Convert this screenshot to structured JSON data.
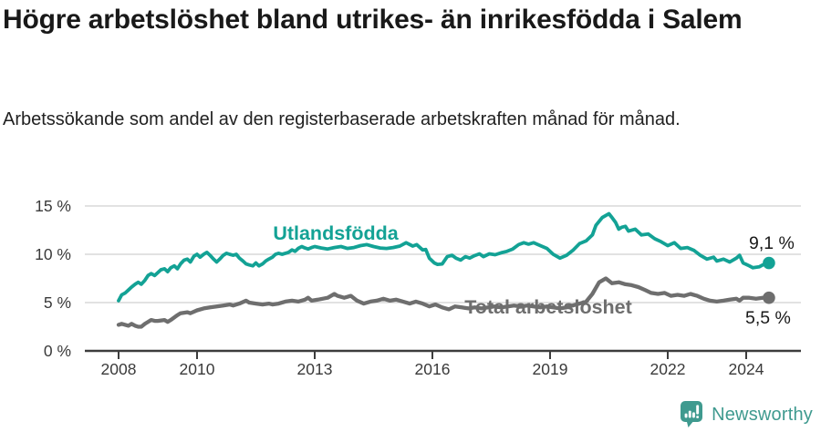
{
  "header": {
    "title": "Högre arbetslöshet bland utrikes- än inrikesfödda i Salem",
    "subtitle": "Arbetssökande som andel av den registerbaserade arbetskraften månad för månad."
  },
  "chart_data": {
    "type": "line",
    "title": "Högre arbetslöshet bland utrikes- än inrikesfödda i Salem",
    "subtitle": "Arbetssökande som andel av den registerbaserade arbetskraften månad för månad.",
    "unit": "%",
    "grid": true,
    "legend_position": "inline-labels-on-chart",
    "x_axis": {
      "range": [
        2008,
        2024.58
      ],
      "ticks": [
        {
          "value": 2008,
          "label": "2008"
        },
        {
          "value": 2010,
          "label": "2010"
        },
        {
          "value": 2013,
          "label": "2013"
        },
        {
          "value": 2016,
          "label": "2016"
        },
        {
          "value": 2019,
          "label": "2019"
        },
        {
          "value": 2022,
          "label": "2022"
        },
        {
          "value": 2024,
          "label": "2024"
        }
      ]
    },
    "y_axis": {
      "range": [
        0,
        15
      ],
      "ticks": [
        {
          "value": 0,
          "label": "0 %"
        },
        {
          "value": 5,
          "label": "5 %"
        },
        {
          "value": 10,
          "label": "10 %"
        },
        {
          "value": 15,
          "label": "15 %"
        }
      ]
    },
    "series": [
      {
        "name": "Utlandsfödda",
        "color": "#13a295",
        "end_value": 9.1,
        "end_label": "9,1 %",
        "points": [
          [
            2008.0,
            5.2
          ],
          [
            2008.08,
            5.8
          ],
          [
            2008.17,
            6.0
          ],
          [
            2008.25,
            6.3
          ],
          [
            2008.33,
            6.6
          ],
          [
            2008.42,
            6.9
          ],
          [
            2008.5,
            7.1
          ],
          [
            2008.58,
            6.9
          ],
          [
            2008.67,
            7.3
          ],
          [
            2008.75,
            7.8
          ],
          [
            2008.83,
            8.0
          ],
          [
            2008.92,
            7.8
          ],
          [
            2009.0,
            8.1
          ],
          [
            2009.08,
            8.4
          ],
          [
            2009.17,
            8.5
          ],
          [
            2009.25,
            8.2
          ],
          [
            2009.33,
            8.6
          ],
          [
            2009.42,
            8.8
          ],
          [
            2009.5,
            8.5
          ],
          [
            2009.58,
            9.0
          ],
          [
            2009.67,
            9.4
          ],
          [
            2009.75,
            9.5
          ],
          [
            2009.83,
            9.2
          ],
          [
            2009.92,
            9.8
          ],
          [
            2010.0,
            10.0
          ],
          [
            2010.08,
            9.7
          ],
          [
            2010.17,
            10.0
          ],
          [
            2010.25,
            10.2
          ],
          [
            2010.33,
            9.9
          ],
          [
            2010.42,
            9.5
          ],
          [
            2010.5,
            9.2
          ],
          [
            2010.58,
            9.5
          ],
          [
            2010.67,
            9.9
          ],
          [
            2010.75,
            10.1
          ],
          [
            2010.83,
            10.0
          ],
          [
            2010.92,
            9.9
          ],
          [
            2011.0,
            10.0
          ],
          [
            2011.08,
            9.6
          ],
          [
            2011.17,
            9.3
          ],
          [
            2011.25,
            9.0
          ],
          [
            2011.33,
            8.9
          ],
          [
            2011.42,
            8.8
          ],
          [
            2011.5,
            9.1
          ],
          [
            2011.58,
            8.8
          ],
          [
            2011.67,
            9.0
          ],
          [
            2011.75,
            9.3
          ],
          [
            2011.83,
            9.5
          ],
          [
            2011.92,
            9.7
          ],
          [
            2012.0,
            10.0
          ],
          [
            2012.08,
            10.1
          ],
          [
            2012.17,
            10.0
          ],
          [
            2012.25,
            10.1
          ],
          [
            2012.33,
            10.2
          ],
          [
            2012.42,
            10.45
          ],
          [
            2012.5,
            10.3
          ],
          [
            2012.58,
            10.6
          ],
          [
            2012.67,
            10.8
          ],
          [
            2012.75,
            10.65
          ],
          [
            2012.83,
            10.55
          ],
          [
            2012.92,
            10.7
          ],
          [
            2013.0,
            10.8
          ],
          [
            2013.17,
            10.65
          ],
          [
            2013.33,
            10.55
          ],
          [
            2013.5,
            10.7
          ],
          [
            2013.67,
            10.8
          ],
          [
            2013.83,
            10.6
          ],
          [
            2014.0,
            10.7
          ],
          [
            2014.17,
            10.9
          ],
          [
            2014.33,
            11.0
          ],
          [
            2014.5,
            10.8
          ],
          [
            2014.67,
            10.65
          ],
          [
            2014.83,
            10.6
          ],
          [
            2015.0,
            10.7
          ],
          [
            2015.17,
            10.85
          ],
          [
            2015.33,
            11.2
          ],
          [
            2015.5,
            10.85
          ],
          [
            2015.6,
            11.0
          ],
          [
            2015.75,
            10.45
          ],
          [
            2015.83,
            10.5
          ],
          [
            2015.92,
            9.6
          ],
          [
            2016.05,
            9.1
          ],
          [
            2016.13,
            8.95
          ],
          [
            2016.25,
            9.0
          ],
          [
            2016.38,
            9.75
          ],
          [
            2016.5,
            9.9
          ],
          [
            2016.6,
            9.6
          ],
          [
            2016.72,
            9.4
          ],
          [
            2016.84,
            9.75
          ],
          [
            2016.95,
            9.6
          ],
          [
            2017.07,
            9.85
          ],
          [
            2017.2,
            10.05
          ],
          [
            2017.3,
            9.75
          ],
          [
            2017.45,
            10.05
          ],
          [
            2017.6,
            9.95
          ],
          [
            2017.75,
            10.15
          ],
          [
            2017.9,
            10.3
          ],
          [
            2018.05,
            10.55
          ],
          [
            2018.2,
            11.0
          ],
          [
            2018.33,
            11.2
          ],
          [
            2018.45,
            11.05
          ],
          [
            2018.58,
            11.2
          ],
          [
            2018.75,
            10.9
          ],
          [
            2018.92,
            10.6
          ],
          [
            2019.08,
            10.0
          ],
          [
            2019.25,
            9.6
          ],
          [
            2019.42,
            9.9
          ],
          [
            2019.58,
            10.4
          ],
          [
            2019.75,
            11.1
          ],
          [
            2019.92,
            11.4
          ],
          [
            2020.08,
            12.0
          ],
          [
            2020.17,
            13.0
          ],
          [
            2020.33,
            13.8
          ],
          [
            2020.5,
            14.2
          ],
          [
            2020.58,
            13.8
          ],
          [
            2020.67,
            13.3
          ],
          [
            2020.75,
            12.6
          ],
          [
            2020.83,
            12.8
          ],
          [
            2020.92,
            12.9
          ],
          [
            2021.0,
            12.4
          ],
          [
            2021.17,
            12.6
          ],
          [
            2021.33,
            12.0
          ],
          [
            2021.5,
            12.1
          ],
          [
            2021.67,
            11.6
          ],
          [
            2021.83,
            11.3
          ],
          [
            2022.0,
            10.9
          ],
          [
            2022.17,
            11.2
          ],
          [
            2022.33,
            10.6
          ],
          [
            2022.5,
            10.7
          ],
          [
            2022.67,
            10.4
          ],
          [
            2022.83,
            9.9
          ],
          [
            2023.0,
            9.5
          ],
          [
            2023.17,
            9.7
          ],
          [
            2023.25,
            9.3
          ],
          [
            2023.42,
            9.5
          ],
          [
            2023.58,
            9.2
          ],
          [
            2023.75,
            9.6
          ],
          [
            2023.83,
            9.9
          ],
          [
            2023.92,
            9.1
          ],
          [
            2024.08,
            8.8
          ],
          [
            2024.17,
            8.6
          ],
          [
            2024.33,
            8.7
          ],
          [
            2024.42,
            8.9
          ],
          [
            2024.58,
            9.1
          ]
        ]
      },
      {
        "name": "Total arbetslöshet",
        "color": "#6e6e6e",
        "end_value": 5.5,
        "end_label": "5,5 %",
        "points": [
          [
            2008.0,
            2.7
          ],
          [
            2008.08,
            2.8
          ],
          [
            2008.17,
            2.7
          ],
          [
            2008.25,
            2.6
          ],
          [
            2008.33,
            2.8
          ],
          [
            2008.42,
            2.6
          ],
          [
            2008.5,
            2.5
          ],
          [
            2008.58,
            2.5
          ],
          [
            2008.67,
            2.8
          ],
          [
            2008.75,
            3.0
          ],
          [
            2008.83,
            3.2
          ],
          [
            2008.92,
            3.1
          ],
          [
            2009.0,
            3.1
          ],
          [
            2009.17,
            3.2
          ],
          [
            2009.25,
            3.0
          ],
          [
            2009.33,
            3.2
          ],
          [
            2009.5,
            3.7
          ],
          [
            2009.58,
            3.9
          ],
          [
            2009.75,
            4.0
          ],
          [
            2009.83,
            3.9
          ],
          [
            2010.0,
            4.2
          ],
          [
            2010.17,
            4.4
          ],
          [
            2010.33,
            4.5
          ],
          [
            2010.5,
            4.6
          ],
          [
            2010.67,
            4.7
          ],
          [
            2010.83,
            4.8
          ],
          [
            2010.92,
            4.7
          ],
          [
            2011.08,
            4.9
          ],
          [
            2011.25,
            5.2
          ],
          [
            2011.33,
            5.0
          ],
          [
            2011.5,
            4.9
          ],
          [
            2011.67,
            4.8
          ],
          [
            2011.83,
            4.9
          ],
          [
            2011.92,
            4.8
          ],
          [
            2012.08,
            4.9
          ],
          [
            2012.25,
            5.1
          ],
          [
            2012.42,
            5.2
          ],
          [
            2012.58,
            5.1
          ],
          [
            2012.75,
            5.3
          ],
          [
            2012.83,
            5.5
          ],
          [
            2012.92,
            5.2
          ],
          [
            2013.08,
            5.3
          ],
          [
            2013.33,
            5.5
          ],
          [
            2013.5,
            5.9
          ],
          [
            2013.58,
            5.7
          ],
          [
            2013.75,
            5.5
          ],
          [
            2013.92,
            5.7
          ],
          [
            2014.08,
            5.2
          ],
          [
            2014.25,
            4.9
          ],
          [
            2014.42,
            5.1
          ],
          [
            2014.58,
            5.2
          ],
          [
            2014.75,
            5.4
          ],
          [
            2014.92,
            5.2
          ],
          [
            2015.08,
            5.3
          ],
          [
            2015.25,
            5.1
          ],
          [
            2015.42,
            4.9
          ],
          [
            2015.58,
            5.1
          ],
          [
            2015.75,
            4.9
          ],
          [
            2015.92,
            4.6
          ],
          [
            2016.08,
            4.8
          ],
          [
            2016.25,
            4.5
          ],
          [
            2016.42,
            4.3
          ],
          [
            2016.58,
            4.6
          ],
          [
            2016.75,
            4.5
          ],
          [
            2016.92,
            4.4
          ],
          [
            2017.08,
            4.5
          ],
          [
            2017.25,
            4.4
          ],
          [
            2017.42,
            4.5
          ],
          [
            2017.58,
            4.6
          ],
          [
            2017.75,
            4.5
          ],
          [
            2017.92,
            4.6
          ],
          [
            2018.08,
            4.7
          ],
          [
            2018.25,
            4.6
          ],
          [
            2018.42,
            4.7
          ],
          [
            2018.58,
            4.6
          ],
          [
            2018.75,
            4.5
          ],
          [
            2018.92,
            4.6
          ],
          [
            2019.08,
            4.5
          ],
          [
            2019.25,
            4.4
          ],
          [
            2019.42,
            4.5
          ],
          [
            2019.58,
            4.7
          ],
          [
            2019.75,
            4.9
          ],
          [
            2019.92,
            5.1
          ],
          [
            2020.08,
            5.9
          ],
          [
            2020.25,
            7.1
          ],
          [
            2020.42,
            7.5
          ],
          [
            2020.58,
            7.0
          ],
          [
            2020.75,
            7.1
          ],
          [
            2020.92,
            6.9
          ],
          [
            2021.08,
            6.8
          ],
          [
            2021.25,
            6.6
          ],
          [
            2021.42,
            6.3
          ],
          [
            2021.58,
            6.0
          ],
          [
            2021.75,
            5.9
          ],
          [
            2021.92,
            6.0
          ],
          [
            2022.08,
            5.7
          ],
          [
            2022.25,
            5.8
          ],
          [
            2022.42,
            5.7
          ],
          [
            2022.58,
            5.9
          ],
          [
            2022.75,
            5.7
          ],
          [
            2022.92,
            5.4
          ],
          [
            2023.08,
            5.2
          ],
          [
            2023.25,
            5.1
          ],
          [
            2023.42,
            5.2
          ],
          [
            2023.58,
            5.3
          ],
          [
            2023.75,
            5.4
          ],
          [
            2023.83,
            5.2
          ],
          [
            2023.92,
            5.5
          ],
          [
            2024.08,
            5.5
          ],
          [
            2024.25,
            5.4
          ],
          [
            2024.42,
            5.5
          ],
          [
            2024.58,
            5.5
          ]
        ]
      }
    ]
  },
  "footer": {
    "brand": "Newsworthy",
    "brand_color": "#3f9a8f",
    "logo_icon": "speech-bubble-bar-chart-exclamation"
  }
}
